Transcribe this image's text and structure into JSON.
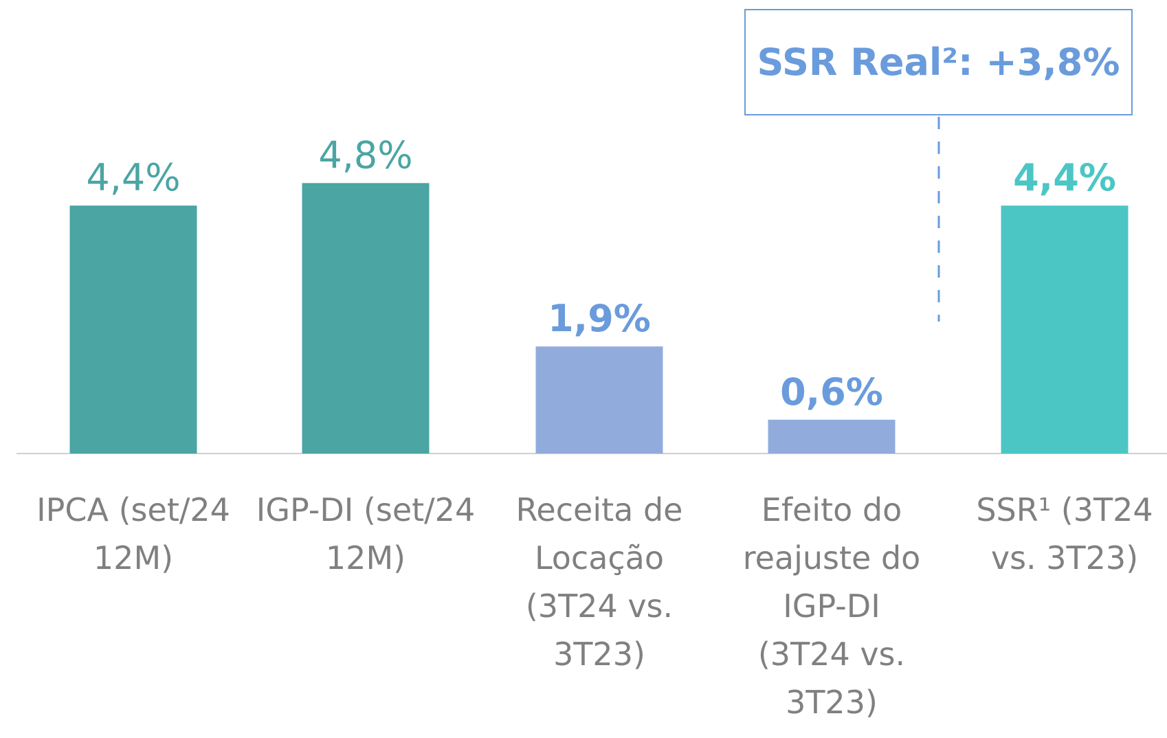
{
  "chart_data": {
    "type": "bar",
    "categories": [
      "IPCA (set/24 12M)",
      "IGP-DI (set/24 12M)",
      "Receita de Locação (3T24 vs. 3T23)",
      "Efeito do reajuste do IGP-DI (3T24 vs. 3T23)",
      "SSR¹ (3T24 vs. 3T23)"
    ],
    "values": [
      4.4,
      4.8,
      1.9,
      0.6,
      4.4
    ],
    "value_labels": [
      "4,4%",
      "4,8%",
      "1,9%",
      "0,6%",
      "4,4%"
    ],
    "colors": [
      "#4aa5a3",
      "#4aa5a3",
      "#91acdc",
      "#91acdc",
      "#4cc6c5"
    ],
    "value_label_colors": [
      "#4aa5a3",
      "#4aa5a3",
      "#6a9bdc",
      "#6a9bdc",
      "#4cc6c5"
    ],
    "ylim": [
      0,
      8
    ],
    "annotation": "SSR Real²: +3,8%"
  }
}
